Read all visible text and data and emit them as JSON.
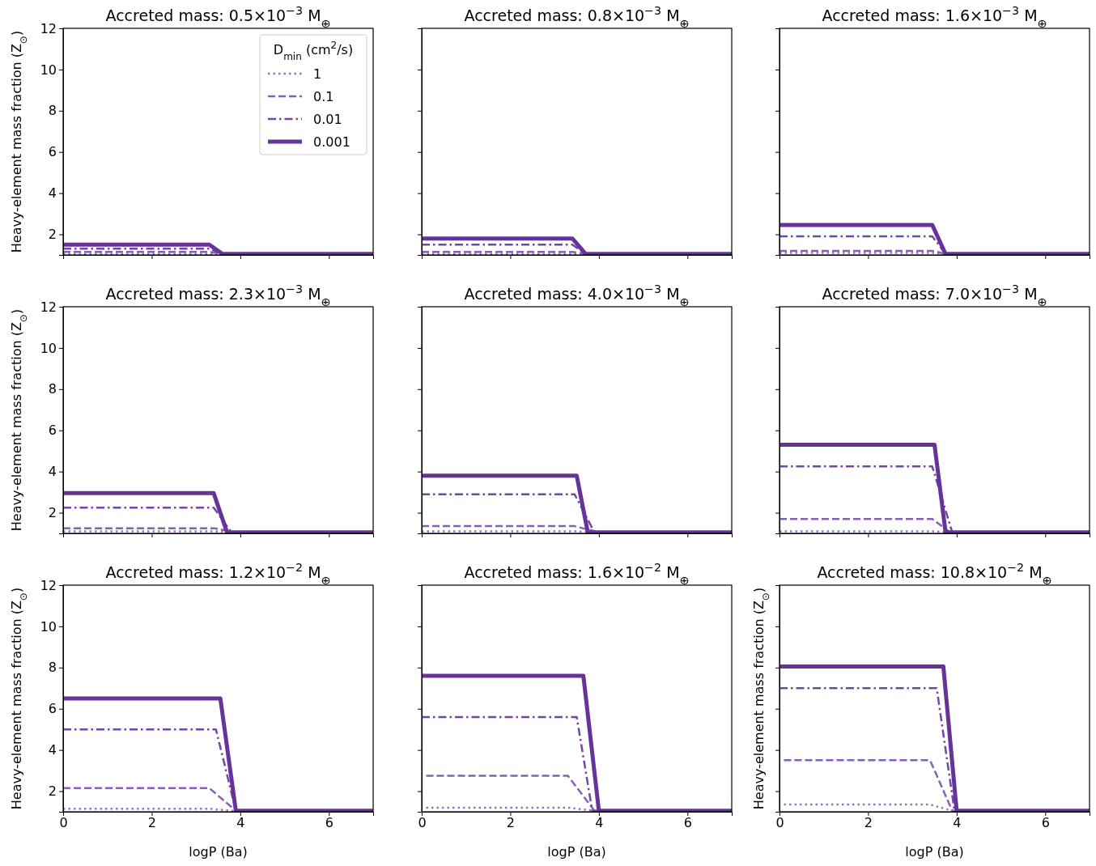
{
  "chart_data": [
    {
      "type": "line",
      "title": "Accreted mass: 0.5×10$^{−3}$ M$_{⊕}$",
      "ylabel": "Heavy-element mass fraction (Z$_{⊙}$)",
      "xlim": [
        0,
        7
      ],
      "ylim": [
        1,
        12
      ],
      "xticks": [
        0,
        2,
        4,
        6
      ],
      "yticks": [
        2,
        4,
        6,
        8,
        10,
        12
      ],
      "tick_labels": "y",
      "legend": "top right",
      "legend_title": "D$_{min}$ (cm$^{2}$/s)",
      "series": [
        {
          "name": "1",
          "color": "#9b72c8",
          "line_style": "dotted",
          "x": [
            0,
            3.3,
            3.6,
            7
          ],
          "values": [
            1.05,
            1.05,
            1.05,
            1.05
          ]
        },
        {
          "name": "0.1",
          "color": "#8560b4",
          "line_style": "dashed",
          "x": [
            0,
            3.3,
            3.6,
            7
          ],
          "values": [
            1.15,
            1.15,
            1.05,
            1.05
          ]
        },
        {
          "name": "0.01",
          "color": "#7446a8",
          "line_style": "dashdot",
          "x": [
            0,
            3.3,
            3.6,
            7
          ],
          "values": [
            1.3,
            1.3,
            1.05,
            1.05
          ]
        },
        {
          "name": "0.001",
          "color": "#663399",
          "line_style": "solid",
          "x": [
            0,
            3.3,
            3.6,
            7
          ],
          "values": [
            1.5,
            1.5,
            1.05,
            1.05
          ]
        }
      ]
    },
    {
      "type": "line",
      "title": "Accreted mass: 0.8×10$^{−3}$ M$_{⊕}$",
      "xlim": [
        0,
        7
      ],
      "ylim": [
        1,
        12
      ],
      "xticks": [
        0,
        2,
        4,
        6
      ],
      "yticks": [
        2,
        4,
        6,
        8,
        10,
        12
      ],
      "tick_labels": false,
      "series": [
        {
          "color": "#9b72c8",
          "line_style": "dotted",
          "x": [
            0,
            3.4,
            3.7,
            7
          ],
          "values": [
            1.05,
            1.05,
            1.05,
            1.05
          ]
        },
        {
          "color": "#8560b4",
          "line_style": "dashed",
          "x": [
            0,
            3.4,
            3.7,
            7
          ],
          "values": [
            1.15,
            1.15,
            1.05,
            1.05
          ]
        },
        {
          "color": "#7446a8",
          "line_style": "dashdot",
          "x": [
            0,
            3.4,
            3.7,
            7
          ],
          "values": [
            1.5,
            1.5,
            1.05,
            1.05
          ]
        },
        {
          "color": "#663399",
          "line_style": "solid",
          "x": [
            0,
            3.4,
            3.7,
            7
          ],
          "values": [
            1.8,
            1.8,
            1.05,
            1.05
          ]
        }
      ]
    },
    {
      "type": "line",
      "title": "Accreted mass: 1.6×10$^{−3}$ M$_{⊕}$",
      "xlim": [
        0,
        7
      ],
      "ylim": [
        1,
        12
      ],
      "xticks": [
        0,
        2,
        4,
        6
      ],
      "yticks": [
        2,
        4,
        6,
        8,
        10,
        12
      ],
      "tick_labels": false,
      "series": [
        {
          "color": "#9b72c8",
          "line_style": "dotted",
          "x": [
            0,
            3.45,
            3.75,
            7
          ],
          "values": [
            1.1,
            1.1,
            1.05,
            1.05
          ]
        },
        {
          "color": "#8560b4",
          "line_style": "dashed",
          "x": [
            0,
            3.45,
            3.75,
            7
          ],
          "values": [
            1.2,
            1.2,
            1.05,
            1.05
          ]
        },
        {
          "color": "#7446a8",
          "line_style": "dashdot",
          "x": [
            0,
            3.45,
            3.75,
            7
          ],
          "values": [
            1.9,
            1.9,
            1.05,
            1.05
          ]
        },
        {
          "color": "#663399",
          "line_style": "solid",
          "x": [
            0,
            3.45,
            3.75,
            7
          ],
          "values": [
            2.45,
            2.45,
            1.05,
            1.05
          ]
        }
      ]
    },
    {
      "type": "line",
      "title": "Accreted mass: 2.3×10$^{−3}$ M$_{⊕}$",
      "ylabel": "Heavy-element mass fraction (Z$_{⊙}$)",
      "xlim": [
        0,
        7
      ],
      "ylim": [
        1,
        12
      ],
      "xticks": [
        0,
        2,
        4,
        6
      ],
      "yticks": [
        2,
        4,
        6,
        8,
        10,
        12
      ],
      "tick_labels": "y",
      "series": [
        {
          "color": "#9b72c8",
          "line_style": "dotted",
          "x": [
            0,
            3.4,
            3.9,
            7
          ],
          "values": [
            1.1,
            1.1,
            1.05,
            1.05
          ]
        },
        {
          "color": "#8560b4",
          "line_style": "dashed",
          "x": [
            0,
            3.4,
            3.9,
            7
          ],
          "values": [
            1.25,
            1.25,
            1.05,
            1.05
          ]
        },
        {
          "color": "#7446a8",
          "line_style": "dashdot",
          "x": [
            0,
            3.4,
            3.8,
            7
          ],
          "values": [
            2.25,
            2.25,
            1.05,
            1.05
          ]
        },
        {
          "color": "#663399",
          "line_style": "solid",
          "x": [
            0,
            3.4,
            3.7,
            7
          ],
          "values": [
            2.95,
            2.95,
            1.05,
            1.05
          ]
        }
      ]
    },
    {
      "type": "line",
      "title": "Accreted mass: 4.0×10$^{−3}$ M$_{⊕}$",
      "xlim": [
        0,
        7
      ],
      "ylim": [
        1,
        12
      ],
      "xticks": [
        0,
        2,
        4,
        6
      ],
      "yticks": [
        2,
        4,
        6,
        8,
        10,
        12
      ],
      "tick_labels": false,
      "series": [
        {
          "color": "#9b72c8",
          "line_style": "dotted",
          "x": [
            0,
            3.45,
            3.9,
            7
          ],
          "values": [
            1.1,
            1.1,
            1.05,
            1.05
          ]
        },
        {
          "color": "#8560b4",
          "line_style": "dashed",
          "x": [
            0,
            3.45,
            4.0,
            7
          ],
          "values": [
            1.35,
            1.35,
            1.05,
            1.05
          ]
        },
        {
          "color": "#7446a8",
          "line_style": "dashdot",
          "x": [
            0,
            3.45,
            3.9,
            7
          ],
          "values": [
            2.9,
            2.9,
            1.05,
            1.05
          ]
        },
        {
          "color": "#663399",
          "line_style": "solid",
          "x": [
            0,
            3.5,
            3.75,
            7
          ],
          "values": [
            3.8,
            3.8,
            1.05,
            1.05
          ]
        }
      ]
    },
    {
      "type": "line",
      "title": "Accreted mass: 7.0×10$^{−3}$ M$_{⊕}$",
      "xlim": [
        0,
        7
      ],
      "ylim": [
        1,
        12
      ],
      "xticks": [
        0,
        2,
        4,
        6
      ],
      "yticks": [
        2,
        4,
        6,
        8,
        10,
        12
      ],
      "tick_labels": false,
      "series": [
        {
          "color": "#9b72c8",
          "line_style": "dotted",
          "x": [
            0,
            3.45,
            3.9,
            7
          ],
          "values": [
            1.1,
            1.1,
            1.05,
            1.05
          ]
        },
        {
          "color": "#8560b4",
          "line_style": "dashed",
          "x": [
            0,
            3.45,
            3.85,
            7
          ],
          "values": [
            1.7,
            1.7,
            1.05,
            1.05
          ]
        },
        {
          "color": "#7446a8",
          "line_style": "dashdot",
          "x": [
            0,
            3.45,
            3.9,
            7
          ],
          "values": [
            4.25,
            4.25,
            1.05,
            1.05
          ]
        },
        {
          "color": "#663399",
          "line_style": "solid",
          "x": [
            0,
            3.5,
            3.75,
            7
          ],
          "values": [
            5.3,
            5.3,
            1.05,
            1.05
          ]
        }
      ]
    },
    {
      "type": "line",
      "title": "Accreted mass: 1.2×10$^{−2}$ M$_{⊕}$",
      "xlabel": "logP (Ba)",
      "ylabel": "Heavy-element mass fraction (Z$_{⊙}$)",
      "xlim": [
        0,
        7
      ],
      "ylim": [
        1,
        12
      ],
      "xticks": [
        0,
        2,
        4,
        6
      ],
      "yticks": [
        2,
        4,
        6,
        8,
        10,
        12
      ],
      "series": [
        {
          "color": "#9b72c8",
          "line_style": "dotted",
          "x": [
            0,
            3.3,
            3.8,
            7
          ],
          "values": [
            1.15,
            1.15,
            1.05,
            1.05
          ]
        },
        {
          "color": "#8560b4",
          "line_style": "dashed",
          "x": [
            0,
            3.3,
            3.9,
            7
          ],
          "values": [
            2.15,
            2.15,
            1.05,
            1.05
          ]
        },
        {
          "color": "#7446a8",
          "line_style": "dashdot",
          "x": [
            0,
            3.45,
            3.9,
            7
          ],
          "values": [
            5.0,
            5.0,
            1.05,
            1.05
          ]
        },
        {
          "color": "#663399",
          "line_style": "solid",
          "x": [
            0,
            3.55,
            3.9,
            7
          ],
          "values": [
            6.5,
            6.5,
            1.05,
            1.05
          ]
        }
      ]
    },
    {
      "type": "line",
      "title": "Accreted mass: 1.6×10$^{−2}$ M$_{⊕}$",
      "xlabel": "logP (Ba)",
      "xlim": [
        0,
        7
      ],
      "ylim": [
        1,
        12
      ],
      "xticks": [
        0,
        2,
        4,
        6
      ],
      "yticks": [
        2,
        4,
        6,
        8,
        10,
        12
      ],
      "tick_labels": "x",
      "series": [
        {
          "color": "#9b72c8",
          "line_style": "dotted",
          "x": [
            0.1,
            3.3,
            3.9,
            7
          ],
          "values": [
            1.2,
            1.2,
            1.05,
            1.05
          ]
        },
        {
          "color": "#8560b4",
          "line_style": "dashed",
          "x": [
            0.1,
            3.3,
            3.9,
            7
          ],
          "values": [
            2.75,
            2.75,
            1.05,
            1.05
          ]
        },
        {
          "color": "#7446a8",
          "line_style": "dashdot",
          "x": [
            0,
            3.5,
            3.85,
            7
          ],
          "values": [
            5.6,
            5.6,
            1.05,
            1.05
          ]
        },
        {
          "color": "#663399",
          "line_style": "solid",
          "x": [
            0,
            3.65,
            4.0,
            7
          ],
          "values": [
            7.6,
            7.6,
            1.05,
            1.05
          ]
        }
      ]
    },
    {
      "type": "line",
      "title": "Accreted mass: 10.8×10$^{−2}$ M$_{⊕}$",
      "xlabel": "logP (Ba)",
      "ylabel": "Heavy-element mass fraction (Z$_{⊙}$)",
      "xlim": [
        0,
        7
      ],
      "ylim": [
        1,
        12
      ],
      "xticks": [
        0,
        2,
        4,
        6
      ],
      "yticks": [
        2,
        4,
        6,
        8,
        10,
        12
      ],
      "tick_labels": "x",
      "series": [
        {
          "color": "#9b72c8",
          "line_style": "dotted",
          "x": [
            0.1,
            3.4,
            3.9,
            7
          ],
          "values": [
            1.35,
            1.35,
            1.05,
            1.05
          ]
        },
        {
          "color": "#8560b4",
          "line_style": "dashed",
          "x": [
            0.1,
            3.4,
            3.9,
            7
          ],
          "values": [
            3.5,
            3.5,
            1.05,
            1.05
          ]
        },
        {
          "color": "#7446a8",
          "line_style": "dashdot",
          "x": [
            0,
            3.55,
            3.95,
            7
          ],
          "values": [
            7.0,
            7.0,
            1.05,
            1.05
          ]
        },
        {
          "color": "#663399",
          "line_style": "solid",
          "x": [
            0,
            3.7,
            4.0,
            7
          ],
          "values": [
            8.05,
            8.05,
            1.05,
            1.05
          ]
        }
      ]
    }
  ]
}
